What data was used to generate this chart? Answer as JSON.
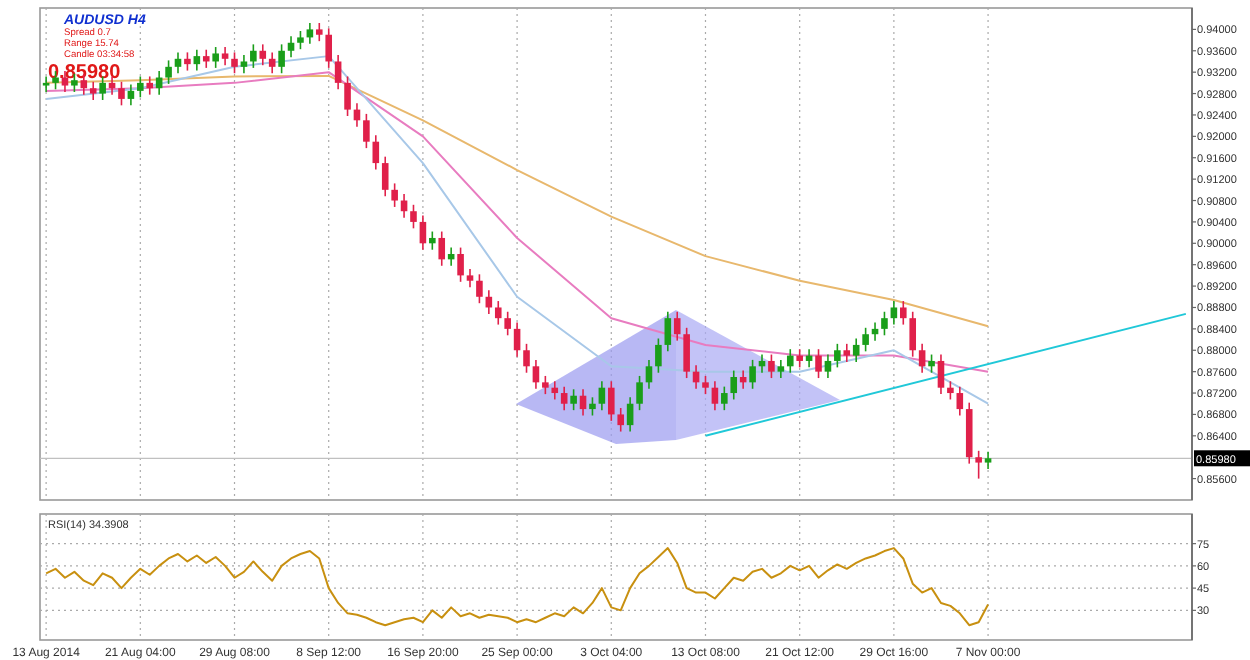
{
  "chart_data": [
    {
      "type": "candlestick",
      "annotations": [
        "AUDUSD  H4",
        "Spread  0.7",
        "Range  15.74",
        "Candle  03:34:58",
        "0.85980"
      ],
      "categories": [
        null,
        null,
        null,
        null,
        null,
        null,
        null,
        null,
        null,
        null,
        null,
        null,
        null,
        null,
        null,
        null,
        null,
        null,
        null,
        null,
        null,
        null,
        null,
        null,
        null,
        null,
        null,
        null,
        null,
        null,
        null,
        null,
        null,
        null,
        null,
        null,
        null,
        null,
        null,
        null,
        null,
        null,
        null,
        null,
        null,
        null,
        null,
        null,
        null,
        null,
        null,
        null,
        null,
        null,
        null,
        null,
        null,
        null,
        null,
        null,
        null,
        null,
        null,
        null,
        null,
        null,
        null,
        null,
        null,
        null,
        null,
        null,
        null,
        null,
        null,
        null,
        null,
        null,
        null,
        null,
        null,
        null,
        null,
        null,
        null,
        null,
        null,
        null,
        null,
        null,
        null,
        null,
        null,
        null,
        null,
        null,
        null,
        null,
        null,
        null,
        null,
        null,
        null,
        null,
        null,
        null,
        null,
        null,
        null,
        null,
        null,
        null,
        null,
        null,
        null,
        null,
        null,
        null,
        null,
        null,
        null,
        null
      ],
      "ohlc": [
        [
          0.9295,
          0.9312,
          0.9283,
          0.93
        ],
        [
          0.93,
          0.9322,
          0.9288,
          0.931
        ],
        [
          0.931,
          0.9322,
          0.9283,
          0.9295
        ],
        [
          0.9295,
          0.9317,
          0.9283,
          0.9305
        ],
        [
          0.9305,
          0.9317,
          0.9278,
          0.929
        ],
        [
          0.929,
          0.9302,
          0.9268,
          0.928
        ],
        [
          0.928,
          0.9312,
          0.9268,
          0.93
        ],
        [
          0.93,
          0.9312,
          0.9278,
          0.929
        ],
        [
          0.929,
          0.9302,
          0.9258,
          0.927
        ],
        [
          0.927,
          0.9297,
          0.9258,
          0.9285
        ],
        [
          0.9285,
          0.9312,
          0.9273,
          0.93
        ],
        [
          0.93,
          0.9312,
          0.9278,
          0.929
        ],
        [
          0.929,
          0.9322,
          0.9278,
          0.931
        ],
        [
          0.931,
          0.9342,
          0.9298,
          0.933
        ],
        [
          0.933,
          0.9357,
          0.9318,
          0.9345
        ],
        [
          0.9345,
          0.9357,
          0.9323,
          0.9335
        ],
        [
          0.9335,
          0.9362,
          0.9323,
          0.935
        ],
        [
          0.935,
          0.9362,
          0.9328,
          0.934
        ],
        [
          0.934,
          0.9367,
          0.9328,
          0.9355
        ],
        [
          0.9355,
          0.9367,
          0.9333,
          0.9345
        ],
        [
          0.9345,
          0.9357,
          0.9318,
          0.933
        ],
        [
          0.933,
          0.9352,
          0.9318,
          0.934
        ],
        [
          0.934,
          0.9372,
          0.9328,
          0.936
        ],
        [
          0.936,
          0.9372,
          0.9333,
          0.9345
        ],
        [
          0.9345,
          0.9357,
          0.9318,
          0.933
        ],
        [
          0.933,
          0.9372,
          0.9318,
          0.936
        ],
        [
          0.936,
          0.9387,
          0.9348,
          0.9375
        ],
        [
          0.9375,
          0.9397,
          0.9363,
          0.9385
        ],
        [
          0.9385,
          0.9412,
          0.9373,
          0.94
        ],
        [
          0.94,
          0.9412,
          0.9378,
          0.939
        ],
        [
          0.939,
          0.9402,
          0.9328,
          0.934
        ],
        [
          0.934,
          0.9352,
          0.9288,
          0.93
        ],
        [
          0.93,
          0.9312,
          0.9238,
          0.925
        ],
        [
          0.925,
          0.9262,
          0.9218,
          0.923
        ],
        [
          0.923,
          0.9242,
          0.9178,
          0.919
        ],
        [
          0.919,
          0.9202,
          0.9138,
          0.915
        ],
        [
          0.915,
          0.9162,
          0.9088,
          0.91
        ],
        [
          0.91,
          0.9112,
          0.9068,
          0.908
        ],
        [
          0.908,
          0.9092,
          0.9048,
          0.906
        ],
        [
          0.906,
          0.9072,
          0.9028,
          0.904
        ],
        [
          0.904,
          0.9052,
          0.8988,
          0.9
        ],
        [
          0.9,
          0.9022,
          0.8988,
          0.901
        ],
        [
          0.901,
          0.9022,
          0.8958,
          0.897
        ],
        [
          0.897,
          0.8992,
          0.8958,
          0.898
        ],
        [
          0.898,
          0.8992,
          0.8928,
          0.894
        ],
        [
          0.894,
          0.8952,
          0.8918,
          0.893
        ],
        [
          0.893,
          0.8942,
          0.8888,
          0.89
        ],
        [
          0.89,
          0.8912,
          0.8868,
          0.888
        ],
        [
          0.888,
          0.8892,
          0.8848,
          0.886
        ],
        [
          0.886,
          0.8872,
          0.8828,
          0.884
        ],
        [
          0.884,
          0.8852,
          0.8788,
          0.88
        ],
        [
          0.88,
          0.8812,
          0.8758,
          0.877
        ],
        [
          0.877,
          0.8782,
          0.8728,
          0.874
        ],
        [
          0.874,
          0.8752,
          0.8718,
          0.873
        ],
        [
          0.873,
          0.8742,
          0.8708,
          0.872
        ],
        [
          0.872,
          0.8732,
          0.8688,
          0.87
        ],
        [
          0.87,
          0.8727,
          0.8688,
          0.8715
        ],
        [
          0.8715,
          0.8727,
          0.8678,
          0.869
        ],
        [
          0.869,
          0.8712,
          0.8678,
          0.87
        ],
        [
          0.87,
          0.8742,
          0.8688,
          0.873
        ],
        [
          0.873,
          0.8742,
          0.8668,
          0.868
        ],
        [
          0.868,
          0.8692,
          0.8648,
          0.866
        ],
        [
          0.866,
          0.8712,
          0.8648,
          0.87
        ],
        [
          0.87,
          0.8752,
          0.8688,
          0.874
        ],
        [
          0.874,
          0.8782,
          0.8728,
          0.877
        ],
        [
          0.877,
          0.8822,
          0.8758,
          0.881
        ],
        [
          0.881,
          0.8872,
          0.8798,
          0.886
        ],
        [
          0.886,
          0.8872,
          0.8818,
          0.883
        ],
        [
          0.883,
          0.8842,
          0.8748,
          0.876
        ],
        [
          0.876,
          0.8772,
          0.8728,
          0.874
        ],
        [
          0.874,
          0.8752,
          0.8718,
          0.873
        ],
        [
          0.873,
          0.8742,
          0.8688,
          0.87
        ],
        [
          0.87,
          0.8732,
          0.8688,
          0.872
        ],
        [
          0.872,
          0.8762,
          0.8708,
          0.875
        ],
        [
          0.875,
          0.8762,
          0.8728,
          0.874
        ],
        [
          0.874,
          0.8782,
          0.8728,
          0.877
        ],
        [
          0.877,
          0.8792,
          0.8758,
          0.878
        ],
        [
          0.878,
          0.8792,
          0.8748,
          0.876
        ],
        [
          0.876,
          0.8782,
          0.8748,
          0.877
        ],
        [
          0.877,
          0.8802,
          0.8758,
          0.879
        ],
        [
          0.879,
          0.8802,
          0.8768,
          0.878
        ],
        [
          0.878,
          0.8802,
          0.8768,
          0.879
        ],
        [
          0.879,
          0.8802,
          0.8748,
          0.876
        ],
        [
          0.876,
          0.8792,
          0.8748,
          0.878
        ],
        [
          0.878,
          0.8812,
          0.8768,
          0.88
        ],
        [
          0.88,
          0.8812,
          0.8778,
          0.879
        ],
        [
          0.879,
          0.8822,
          0.8778,
          0.881
        ],
        [
          0.881,
          0.8842,
          0.8798,
          0.883
        ],
        [
          0.883,
          0.8852,
          0.8818,
          0.884
        ],
        [
          0.884,
          0.8872,
          0.8828,
          0.886
        ],
        [
          0.886,
          0.8892,
          0.8848,
          0.888
        ],
        [
          0.888,
          0.8892,
          0.8848,
          0.886
        ],
        [
          0.886,
          0.8872,
          0.8788,
          0.88
        ],
        [
          0.88,
          0.8812,
          0.8758,
          0.877
        ],
        [
          0.877,
          0.8792,
          0.8758,
          0.878
        ],
        [
          0.878,
          0.8792,
          0.8718,
          0.873
        ],
        [
          0.873,
          0.8742,
          0.8708,
          0.872
        ],
        [
          0.872,
          0.8732,
          0.8678,
          0.869
        ],
        [
          0.869,
          0.8702,
          0.8588,
          0.86
        ],
        [
          0.86,
          0.8612,
          0.856,
          0.859
        ],
        [
          0.859,
          0.861,
          0.8578,
          0.8598
        ],
        null,
        null,
        null,
        null,
        null,
        null,
        null,
        null,
        null,
        null,
        null,
        null,
        null,
        null,
        null,
        null,
        null,
        null,
        null,
        null,
        null
      ],
      "series": [
        {
          "type": "line",
          "color": "#e8b86d",
          "values": [
            0.93,
            null,
            null,
            null,
            null,
            null,
            null,
            null,
            null,
            null,
            0.9305,
            null,
            null,
            null,
            null,
            null,
            null,
            null,
            null,
            null,
            0.9312,
            null,
            null,
            null,
            null,
            null,
            null,
            null,
            null,
            null,
            0.9313,
            null,
            null,
            null,
            null,
            null,
            null,
            null,
            null,
            null,
            0.923,
            null,
            null,
            null,
            null,
            null,
            null,
            null,
            null,
            null,
            0.9137,
            null,
            null,
            null,
            null,
            null,
            null,
            null,
            null,
            null,
            0.905,
            null,
            null,
            null,
            null,
            null,
            null,
            null,
            null,
            null,
            0.8976,
            null,
            null,
            null,
            null,
            null,
            null,
            null,
            null,
            null,
            0.893,
            null,
            null,
            null,
            null,
            null,
            null,
            null,
            null,
            null,
            0.8894,
            null,
            null,
            null,
            null,
            null,
            null,
            null,
            null,
            null,
            0.8845,
            null,
            null,
            null,
            null,
            null,
            null,
            null,
            null,
            null,
            null,
            null,
            null,
            null,
            null,
            null,
            null,
            null,
            null,
            null,
            null,
            null
          ]
        },
        {
          "type": "line",
          "color": "#e87cc0",
          "values": [
            0.9285,
            null,
            null,
            null,
            null,
            null,
            null,
            null,
            null,
            null,
            0.929,
            null,
            null,
            null,
            null,
            null,
            null,
            null,
            null,
            null,
            0.93,
            null,
            null,
            null,
            null,
            null,
            null,
            null,
            null,
            null,
            0.932,
            null,
            null,
            null,
            null,
            null,
            null,
            null,
            null,
            null,
            0.92,
            null,
            null,
            null,
            null,
            null,
            null,
            null,
            null,
            null,
            0.901,
            null,
            null,
            null,
            null,
            null,
            null,
            null,
            null,
            null,
            0.886,
            null,
            null,
            null,
            null,
            null,
            null,
            null,
            null,
            null,
            0.881,
            null,
            null,
            null,
            null,
            null,
            null,
            null,
            null,
            null,
            0.879,
            null,
            null,
            null,
            null,
            null,
            null,
            null,
            null,
            null,
            0.879,
            null,
            null,
            null,
            null,
            null,
            null,
            null,
            null,
            null,
            0.876,
            null,
            null,
            null,
            null,
            null,
            null,
            null,
            null,
            null,
            null,
            null,
            null,
            null,
            null,
            null,
            null,
            null,
            null,
            null,
            null,
            null
          ]
        },
        {
          "type": "line",
          "color": "#a8c8e8",
          "values": [
            0.927,
            null,
            null,
            null,
            null,
            null,
            null,
            null,
            null,
            null,
            0.929,
            null,
            null,
            null,
            null,
            null,
            null,
            null,
            null,
            null,
            0.933,
            null,
            null,
            null,
            null,
            null,
            null,
            null,
            null,
            null,
            0.935,
            null,
            null,
            null,
            null,
            null,
            null,
            null,
            null,
            null,
            0.915,
            null,
            null,
            null,
            null,
            null,
            null,
            null,
            null,
            null,
            0.89,
            null,
            null,
            null,
            null,
            null,
            null,
            null,
            null,
            null,
            0.877,
            null,
            null,
            null,
            null,
            null,
            null,
            null,
            null,
            null,
            0.876,
            null,
            null,
            null,
            null,
            null,
            null,
            null,
            null,
            null,
            0.876,
            null,
            null,
            null,
            null,
            null,
            null,
            null,
            null,
            null,
            0.88,
            null,
            null,
            null,
            null,
            null,
            null,
            null,
            null,
            null,
            0.87,
            null,
            null,
            null,
            null,
            null,
            null,
            null,
            null,
            null,
            null,
            null,
            null,
            null,
            null,
            null,
            null,
            null,
            null,
            null,
            null,
            null
          ]
        },
        {
          "type": "line",
          "color": "#20c8d8",
          "values": [
            null,
            null,
            null,
            null,
            null,
            null,
            null,
            null,
            null,
            null,
            null,
            null,
            null,
            null,
            null,
            null,
            null,
            null,
            null,
            null,
            null,
            null,
            null,
            null,
            null,
            null,
            null,
            null,
            null,
            null,
            null,
            null,
            null,
            null,
            null,
            null,
            null,
            null,
            null,
            null,
            null,
            null,
            null,
            null,
            null,
            null,
            null,
            null,
            null,
            null,
            null,
            null,
            null,
            null,
            null,
            null,
            null,
            null,
            null,
            null,
            null,
            null,
            null,
            null,
            null,
            null,
            null,
            null,
            null,
            null,
            0.864,
            null,
            null,
            null,
            null,
            null,
            null,
            null,
            null,
            null,
            null,
            null,
            null,
            null,
            null,
            null,
            null,
            null,
            null,
            null,
            null,
            null,
            null,
            null,
            null,
            null,
            null,
            null,
            null,
            null,
            null,
            null,
            null,
            null,
            null,
            null,
            null,
            null,
            null,
            null,
            null,
            null,
            null,
            null,
            null,
            null,
            null,
            null,
            null,
            null,
            null,
            0.8868
          ]
        }
      ],
      "ylim": [
        0.852,
        0.944
      ],
      "yticks": [
        {
          "value": 0.856,
          "label": "0.85600"
        },
        {
          "value": 0.864,
          "label": "0.86400"
        },
        {
          "value": 0.868,
          "label": "0.86800"
        },
        {
          "value": 0.872,
          "label": "0.87200"
        },
        {
          "value": 0.876,
          "label": "0.87600"
        },
        {
          "value": 0.88,
          "label": "0.88000"
        },
        {
          "value": 0.884,
          "label": "0.88400"
        },
        {
          "value": 0.888,
          "label": "0.88800"
        },
        {
          "value": 0.892,
          "label": "0.89200"
        },
        {
          "value": 0.896,
          "label": "0.89600"
        },
        {
          "value": 0.9,
          "label": "0.90000"
        },
        {
          "value": 0.904,
          "label": "0.90400"
        },
        {
          "value": 0.908,
          "label": "0.90800"
        },
        {
          "value": 0.912,
          "label": "0.91200"
        },
        {
          "value": 0.916,
          "label": "0.91600"
        },
        {
          "value": 0.92,
          "label": "0.92000"
        },
        {
          "value": 0.924,
          "label": "0.92400"
        },
        {
          "value": 0.928,
          "label": "0.92800"
        },
        {
          "value": 0.932,
          "label": "0.93200"
        },
        {
          "value": 0.936,
          "label": "0.93600"
        },
        {
          "value": 0.94,
          "label": "0.94000"
        }
      ],
      "ref_lines": [
        {
          "axis": "y",
          "value": 0.8598,
          "label": "0.85980",
          "color": "#c0c0c0"
        }
      ],
      "grid": "x",
      "tick_labels": "y"
    },
    {
      "type": "line",
      "title": "RSI(14) 34.3908",
      "categories": [
        "13 Aug 2014",
        null,
        null,
        null,
        null,
        null,
        null,
        null,
        null,
        null,
        "21 Aug 04:00",
        null,
        null,
        null,
        null,
        null,
        null,
        null,
        null,
        null,
        "29 Aug 08:00",
        null,
        null,
        null,
        null,
        null,
        null,
        null,
        null,
        null,
        "8 Sep 12:00",
        null,
        null,
        null,
        null,
        null,
        null,
        null,
        null,
        null,
        "16 Sep 20:00",
        null,
        null,
        null,
        null,
        null,
        null,
        null,
        null,
        null,
        "25 Sep 00:00",
        null,
        null,
        null,
        null,
        null,
        null,
        null,
        null,
        null,
        "3 Oct 04:00",
        null,
        null,
        null,
        null,
        null,
        null,
        null,
        null,
        null,
        "13 Oct 08:00",
        null,
        null,
        null,
        null,
        null,
        null,
        null,
        null,
        null,
        "21 Oct 12:00",
        null,
        null,
        null,
        null,
        null,
        null,
        null,
        null,
        null,
        "29 Oct 16:00",
        null,
        null,
        null,
        null,
        null,
        null,
        null,
        null,
        null,
        "7 Nov 00:00",
        null,
        null,
        null,
        null,
        null,
        null,
        null,
        null,
        null,
        null,
        null,
        null,
        null,
        null,
        null,
        null,
        null,
        null,
        null,
        null,
        null
      ],
      "series": [
        {
          "color": "#c89010",
          "values": [
            55,
            58,
            52,
            56,
            50,
            47,
            55,
            52,
            45,
            52,
            58,
            54,
            60,
            65,
            68,
            63,
            67,
            62,
            66,
            60,
            52,
            56,
            63,
            56,
            50,
            60,
            65,
            68,
            70,
            65,
            45,
            35,
            28,
            27,
            25,
            22,
            20,
            22,
            24,
            25,
            22,
            30,
            25,
            32,
            26,
            28,
            25,
            27,
            26,
            25,
            22,
            24,
            22,
            25,
            28,
            26,
            32,
            28,
            35,
            45,
            32,
            30,
            45,
            55,
            60,
            66,
            72,
            62,
            45,
            42,
            42,
            38,
            45,
            52,
            50,
            56,
            58,
            52,
            55,
            60,
            57,
            60,
            52,
            57,
            61,
            58,
            62,
            65,
            67,
            70,
            72,
            65,
            48,
            42,
            45,
            35,
            33,
            28,
            20,
            22,
            34,
            null,
            null,
            null,
            null,
            null,
            null,
            null,
            null,
            null,
            null,
            null,
            null,
            null,
            null,
            null,
            null,
            null,
            null,
            null,
            null,
            null
          ]
        }
      ],
      "ylim": [
        10,
        95
      ],
      "yticks": [
        75,
        60,
        45,
        30
      ],
      "grid": true
    }
  ]
}
